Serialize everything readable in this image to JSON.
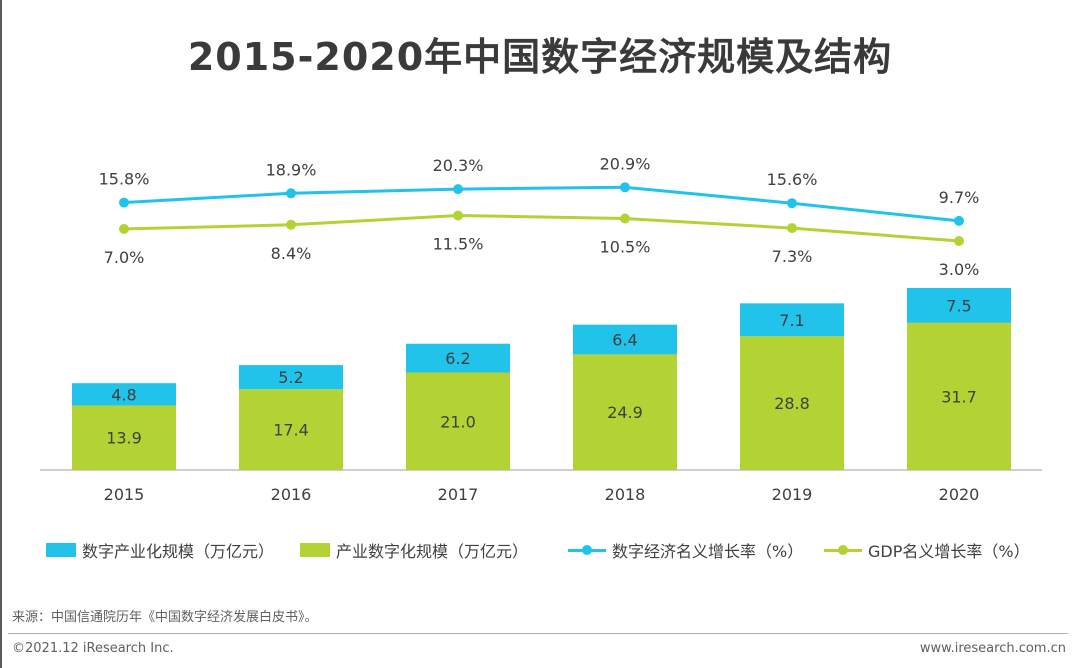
{
  "colors": {
    "blue": "#22c3ea",
    "green": "#b3d334",
    "text": "#404040",
    "axis": "#bfbfbf"
  },
  "chart_data": {
    "type": "bar",
    "stacked": true,
    "title": "2015-2020年中国数字经济规模及结构",
    "categories": [
      "2015",
      "2016",
      "2017",
      "2018",
      "2019",
      "2020"
    ],
    "series": [
      {
        "name": "产业数字化规模（万亿元）",
        "type": "bar",
        "values": [
          13.9,
          17.4,
          21.0,
          24.9,
          28.8,
          31.7
        ],
        "labels": [
          "13.9",
          "17.4",
          "21.0",
          "24.9",
          "28.8",
          "31.7"
        ]
      },
      {
        "name": "数字产业化规模（万亿元）",
        "type": "bar",
        "values": [
          4.8,
          5.2,
          6.2,
          6.4,
          7.1,
          7.5
        ],
        "labels": [
          "4.8",
          "5.2",
          "6.2",
          "6.4",
          "7.1",
          "7.5"
        ]
      },
      {
        "name": "数字经济名义增长率（%）",
        "type": "line",
        "values": [
          15.8,
          18.9,
          20.3,
          20.9,
          15.6,
          9.7
        ],
        "labels": [
          "15.8%",
          "18.9%",
          "20.3%",
          "20.9%",
          "15.6%",
          "9.7%"
        ]
      },
      {
        "name": "GDP名义增长率（%）",
        "type": "line",
        "values": [
          7.0,
          8.4,
          11.5,
          10.5,
          7.3,
          3.0
        ],
        "labels": [
          "7.0%",
          "8.4%",
          "11.5%",
          "10.5%",
          "7.3%",
          "3.0%"
        ]
      }
    ],
    "legend_order": [
      "数字产业化规模（万亿元）",
      "产业数字化规模（万亿元）",
      "数字经济名义增长率（%）",
      "GDP名义增长率（%）"
    ],
    "legend_position": "bottom",
    "grid": false
  },
  "footer": {
    "source": "来源：中国信通院历年《中国数字经济发展白皮书》。",
    "copyright": "©2021.12 iResearch Inc.",
    "website": "www.iresearch.com.cn"
  }
}
